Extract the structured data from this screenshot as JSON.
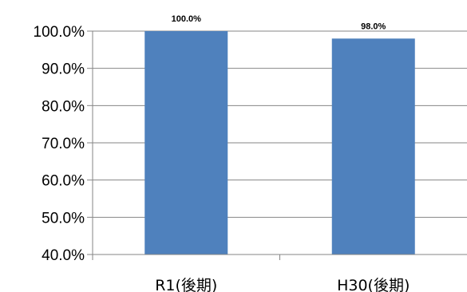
{
  "chart_data": {
    "type": "bar",
    "categories": [
      "R1(後期)",
      "H30(後期)"
    ],
    "series": [
      {
        "values": [
          100.0,
          98.0
        ]
      }
    ],
    "data_labels": [
      "100.0%",
      "98.0%"
    ],
    "ylim": [
      40,
      100
    ],
    "yticks": [
      40,
      50,
      60,
      70,
      80,
      90,
      100
    ],
    "ytick_labels": [
      "40.0%",
      "50.0%",
      "60.0%",
      "70.0%",
      "80.0%",
      "90.0%",
      "100.0%"
    ],
    "grid": true,
    "legend": "none",
    "bar_color": "#4f81bd",
    "grid_color": "#868686",
    "axis_color": "#868686"
  }
}
